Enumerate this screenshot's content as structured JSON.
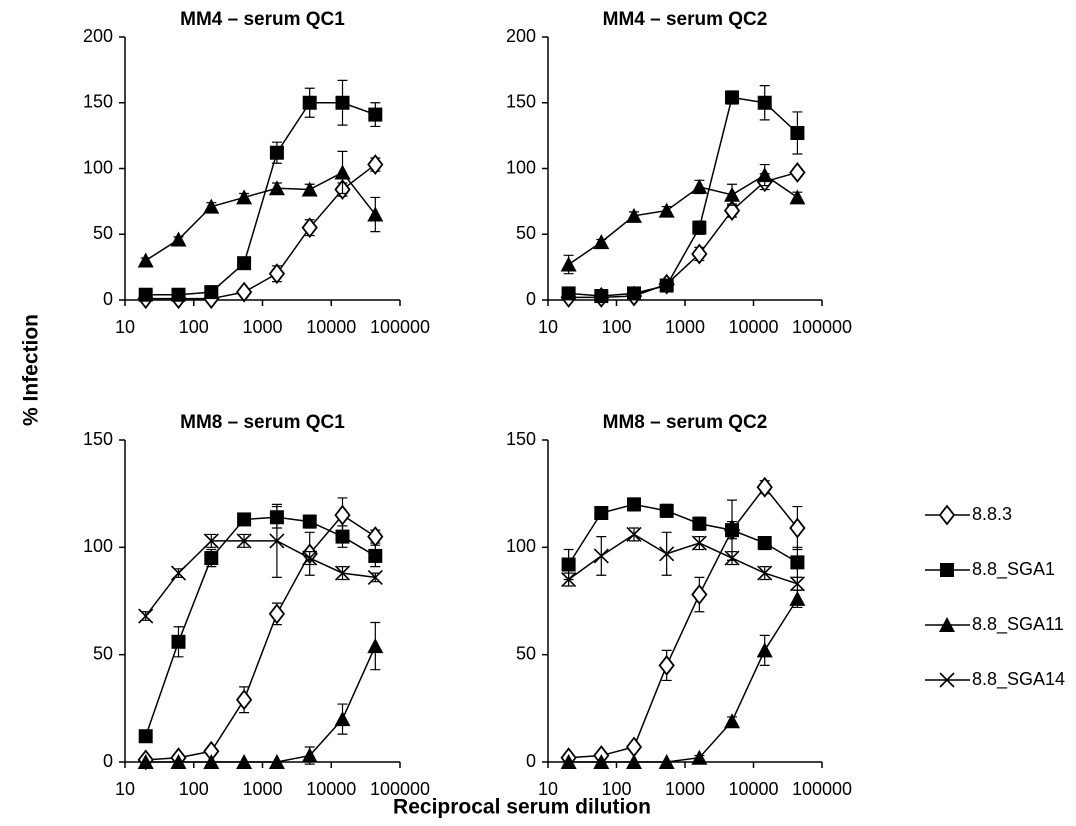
{
  "ylabel": "% Infection",
  "xlabel": "Reciprocal serum dilution",
  "chart_data": [
    {
      "type": "line",
      "title": "MM4  – serum QC1",
      "log_x": true,
      "x": [
        20,
        60,
        180,
        540,
        1620,
        4860,
        14580,
        43740
      ],
      "xlim": [
        10,
        100000
      ],
      "xticks": [
        10,
        100,
        1000,
        10000,
        100000
      ],
      "ylim": [
        0,
        200
      ],
      "yticks": [
        0,
        50,
        100,
        150,
        200
      ],
      "series": [
        {
          "name": "8.8.3",
          "color": "#000000",
          "marker": "diamond-open",
          "values": [
            1,
            1,
            1,
            6,
            20,
            55,
            84,
            103
          ],
          "errors": [
            0,
            0,
            0,
            2,
            6,
            6,
            5,
            5
          ]
        },
        {
          "name": "8.8_SGA1",
          "color": "#000000",
          "marker": "square",
          "values": [
            4,
            4,
            6,
            28,
            112,
            150,
            150,
            141
          ],
          "errors": [
            1,
            1,
            1,
            2,
            8,
            11,
            17,
            9
          ]
        },
        {
          "name": "8.8_SGA11",
          "color": "#000000",
          "marker": "triangle",
          "values": [
            30,
            46,
            71,
            78,
            85,
            84,
            97,
            65
          ],
          "errors": [
            2,
            2,
            3,
            3,
            4,
            4,
            16,
            13
          ]
        }
      ]
    },
    {
      "type": "line",
      "title": "MM4  – serum QC2",
      "log_x": true,
      "x": [
        20,
        60,
        180,
        540,
        1620,
        4860,
        14580,
        43740
      ],
      "xlim": [
        10,
        100000
      ],
      "xticks": [
        10,
        100,
        1000,
        10000,
        100000
      ],
      "ylim": [
        0,
        200
      ],
      "yticks": [
        0,
        50,
        100,
        150,
        200
      ],
      "series": [
        {
          "name": "8.8.3",
          "color": "#000000",
          "marker": "diamond-open",
          "values": [
            2,
            2,
            3,
            12,
            35,
            68,
            90,
            97
          ],
          "errors": [
            0,
            0,
            1,
            2,
            5,
            5,
            6,
            3
          ]
        },
        {
          "name": "8.8_SGA1",
          "color": "#000000",
          "marker": "square",
          "values": [
            5,
            3,
            5,
            11,
            55,
            154,
            150,
            127
          ],
          "errors": [
            1,
            1,
            1,
            2,
            5,
            5,
            13,
            16
          ]
        },
        {
          "name": "8.8_SGA11",
          "color": "#000000",
          "marker": "triangle",
          "values": [
            27,
            44,
            64,
            68,
            86,
            80,
            95,
            78
          ],
          "errors": [
            7,
            2,
            3,
            3,
            5,
            8,
            8,
            4
          ]
        }
      ]
    },
    {
      "type": "line",
      "title": "MM8 – serum QC1",
      "log_x": true,
      "x": [
        20,
        60,
        180,
        540,
        1620,
        4860,
        14580,
        43740
      ],
      "xlim": [
        10,
        100000
      ],
      "xticks": [
        10,
        100,
        1000,
        10000,
        100000
      ],
      "ylim": [
        0,
        150
      ],
      "yticks": [
        0,
        50,
        100,
        150
      ],
      "series": [
        {
          "name": "8.8.3",
          "color": "#000000",
          "marker": "diamond-open",
          "values": [
            1,
            2,
            5,
            29,
            69,
            97,
            115,
            105
          ],
          "errors": [
            0,
            0,
            1,
            6,
            5,
            10,
            8,
            3
          ]
        },
        {
          "name": "8.8_SGA1",
          "color": "#000000",
          "marker": "square",
          "values": [
            12,
            56,
            95,
            113,
            114,
            112,
            105,
            96
          ],
          "errors": [
            1,
            7,
            4,
            2,
            5,
            3,
            5,
            5
          ]
        },
        {
          "name": "8.8_SGA11",
          "color": "#000000",
          "marker": "triangle",
          "values": [
            0,
            0,
            0,
            0,
            0,
            3,
            20,
            54
          ],
          "errors": [
            0,
            0,
            0,
            0,
            0,
            4,
            7,
            11
          ]
        },
        {
          "name": "8.8_SGA14",
          "color": "#000000",
          "marker": "x",
          "values": [
            68,
            88,
            103,
            103,
            103,
            95,
            88,
            86
          ],
          "errors": [
            2,
            2,
            3,
            3,
            17,
            3,
            3,
            2
          ]
        }
      ]
    },
    {
      "type": "line",
      "title": "MM8 – serum QC2",
      "log_x": true,
      "x": [
        20,
        60,
        180,
        540,
        1620,
        4860,
        14580,
        43740
      ],
      "xlim": [
        10,
        100000
      ],
      "xticks": [
        10,
        100,
        1000,
        10000,
        100000
      ],
      "ylim": [
        0,
        150
      ],
      "yticks": [
        0,
        50,
        100,
        150
      ],
      "series": [
        {
          "name": "8.8.3",
          "color": "#000000",
          "marker": "diamond-open",
          "values": [
            2,
            3,
            7,
            45,
            78,
            108,
            128,
            109
          ],
          "errors": [
            0,
            0,
            1,
            7,
            8,
            14,
            3,
            10
          ]
        },
        {
          "name": "8.8_SGA1",
          "color": "#000000",
          "marker": "square",
          "values": [
            92,
            116,
            120,
            117,
            111,
            108,
            102,
            93
          ],
          "errors": [
            7,
            3,
            3,
            3,
            3,
            4,
            3,
            7
          ]
        },
        {
          "name": "8.8_SGA11",
          "color": "#000000",
          "marker": "triangle",
          "values": [
            0,
            0,
            0,
            0,
            2,
            19,
            52,
            76
          ],
          "errors": [
            0,
            0,
            0,
            0,
            1,
            2,
            7,
            4
          ]
        },
        {
          "name": "8.8_SGA14",
          "color": "#000000",
          "marker": "x",
          "values": [
            85,
            96,
            106,
            97,
            102,
            95,
            88,
            83
          ],
          "errors": [
            3,
            9,
            3,
            10,
            3,
            3,
            3,
            3
          ]
        }
      ]
    }
  ]
}
